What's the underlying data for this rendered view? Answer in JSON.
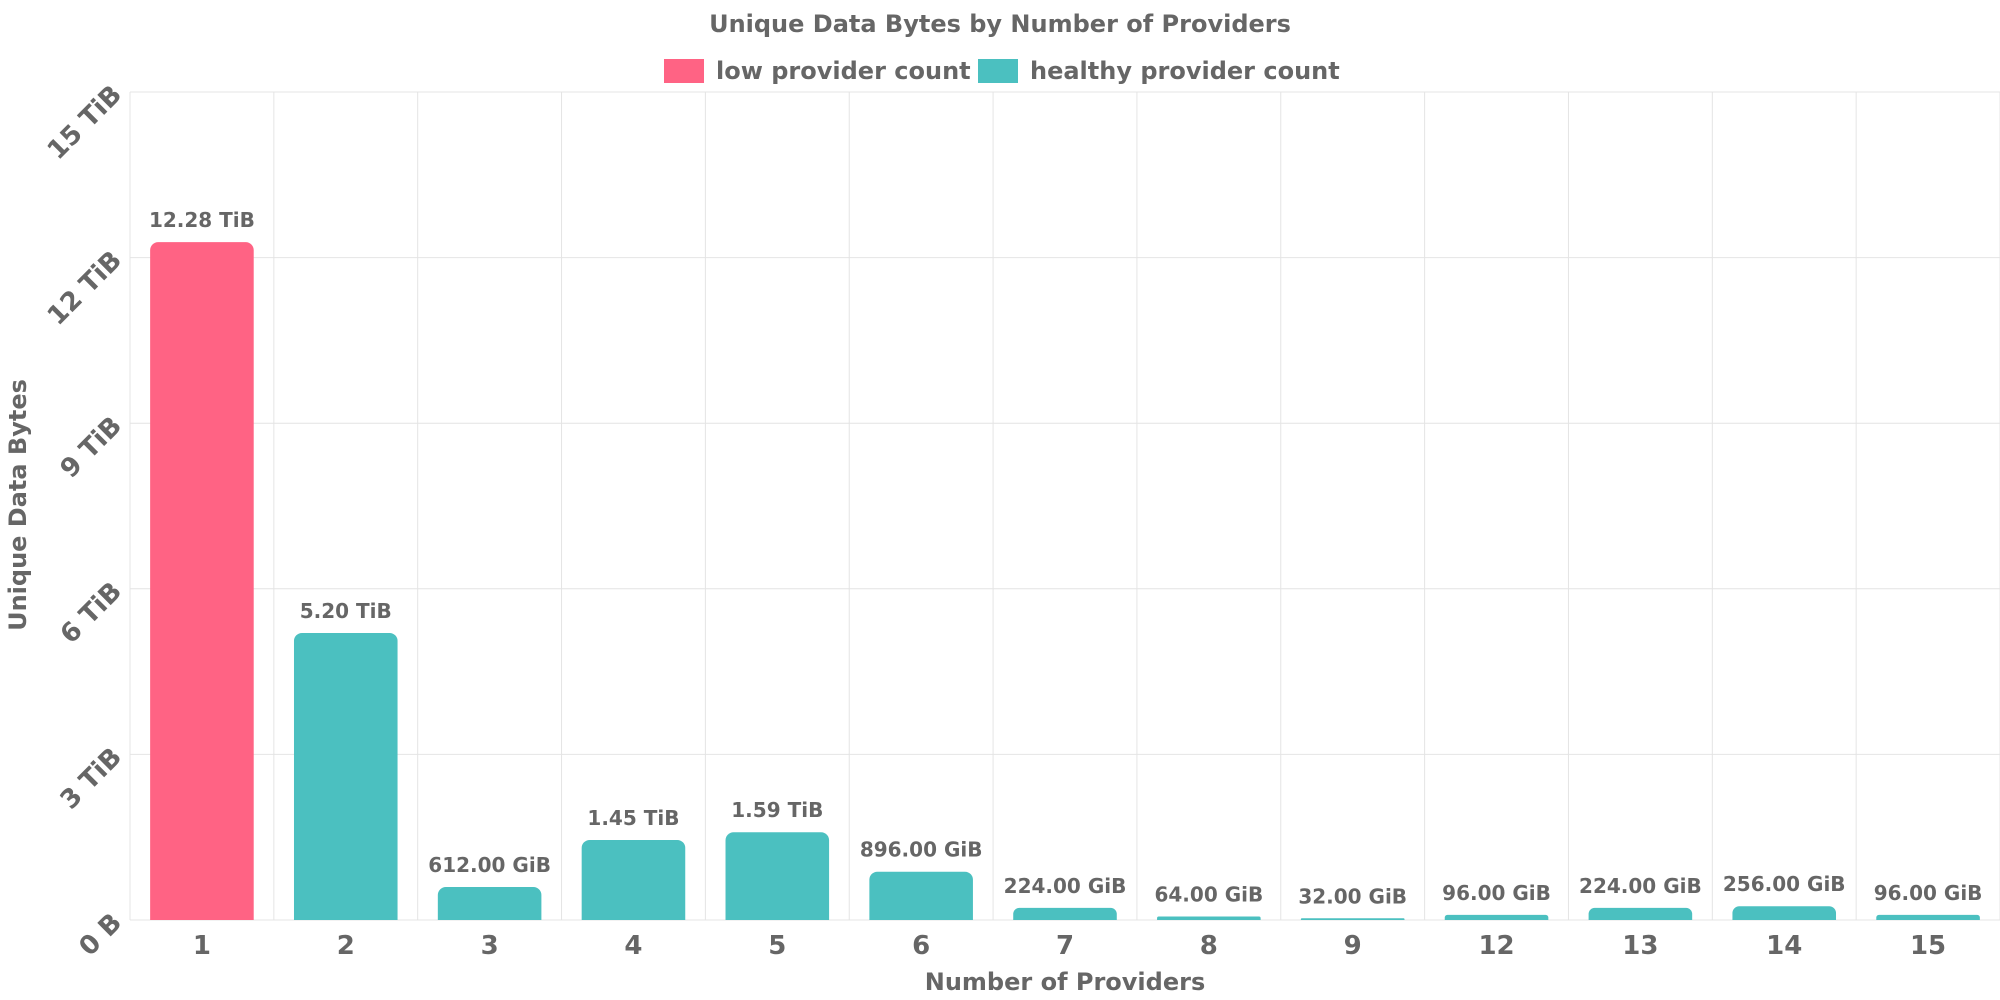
{
  "chart_data": {
    "type": "bar",
    "title": "Unique Data Bytes by Number of Providers",
    "xlabel": "Number of Providers",
    "ylabel": "Unique Data Bytes",
    "categories": [
      "1",
      "2",
      "3",
      "4",
      "5",
      "6",
      "7",
      "8",
      "9",
      "12",
      "13",
      "14",
      "15"
    ],
    "values_gib": [
      12574.72,
      5324.8,
      612,
      1484.8,
      1628.16,
      896,
      224,
      64,
      32,
      96,
      224,
      256,
      96
    ],
    "value_labels": [
      "12.28 TiB",
      "5.20 TiB",
      "612.00 GiB",
      "1.45 TiB",
      "1.59 TiB",
      "896.00 GiB",
      "224.00 GiB",
      "64.00 GiB",
      "32.00 GiB",
      "96.00 GiB",
      "224.00 GiB",
      "256.00 GiB",
      "96.00 GiB"
    ],
    "bar_groups": [
      "low",
      "healthy",
      "healthy",
      "healthy",
      "healthy",
      "healthy",
      "healthy",
      "healthy",
      "healthy",
      "healthy",
      "healthy",
      "healthy",
      "healthy"
    ],
    "ylim_gib": [
      0,
      15360
    ],
    "y_ticks_gib": [
      0,
      3072,
      6144,
      9216,
      12288,
      15360
    ],
    "y_tick_labels": [
      "0 B",
      "3 TiB",
      "6 TiB",
      "9 TiB",
      "12 TiB",
      "15 TiB"
    ],
    "grid": true,
    "legend_position": "top-center",
    "legend": [
      {
        "key": "low",
        "label": "low provider count",
        "color": "#ff6384"
      },
      {
        "key": "healthy",
        "label": "healthy provider count",
        "color": "#4bc0c0"
      }
    ]
  }
}
